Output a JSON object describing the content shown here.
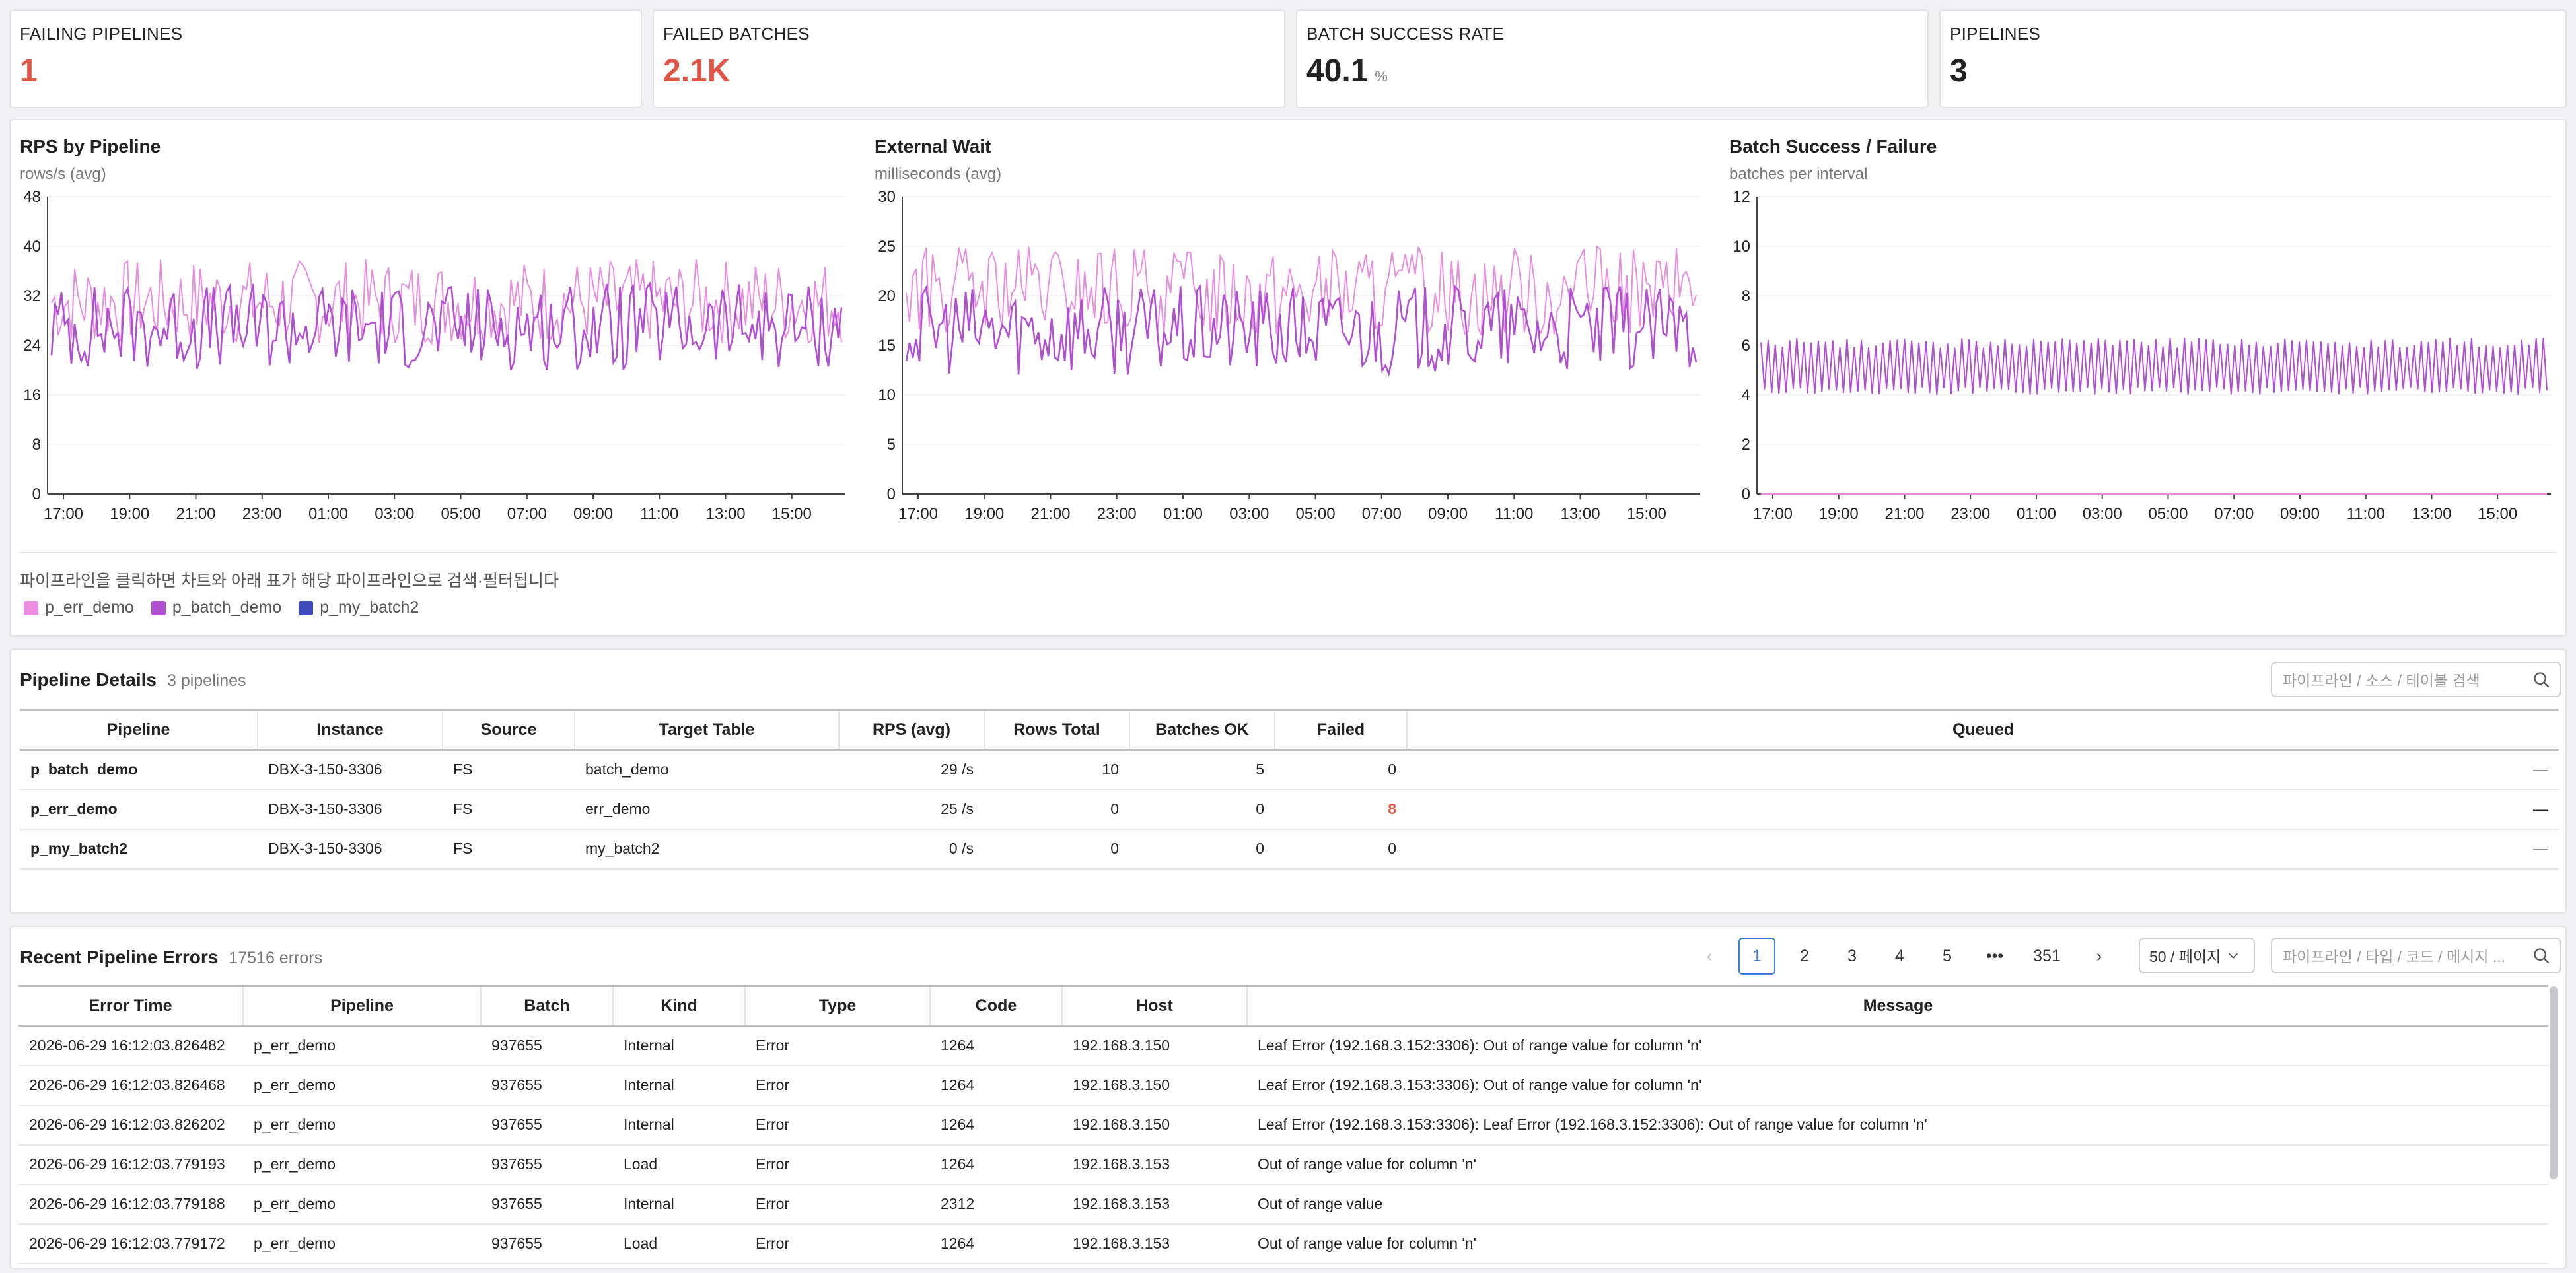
{
  "kpis": [
    {
      "label": "FAILING PIPELINES",
      "value": "1",
      "unit": ""
    },
    {
      "label": "FAILED BATCHES",
      "value": "2.1K",
      "unit": ""
    },
    {
      "label": "BATCH SUCCESS RATE",
      "value": "40.1",
      "unit": "%"
    },
    {
      "label": "PIPELINES",
      "value": "3",
      "unit": ""
    }
  ],
  "colors": {
    "p_err_demo": "#e88de0",
    "p_batch_demo": "#b04ed4",
    "p_my_batch2": "#3f4bbb",
    "danger": "#e05546",
    "accent": "#3b7ddd"
  },
  "chart_data": [
    {
      "type": "line",
      "title": "RPS by Pipeline",
      "subtitle": "rows/s (avg)",
      "x_ticks": [
        "17:00",
        "19:00",
        "21:00",
        "23:00",
        "01:00",
        "03:00",
        "05:00",
        "07:00",
        "09:00",
        "11:00",
        "13:00",
        "15:00"
      ],
      "y_ticks": [
        0,
        8,
        16,
        24,
        32,
        40,
        48
      ],
      "ylim": [
        0,
        48
      ],
      "series": [
        {
          "name": "p_err_demo",
          "range": [
            24,
            38
          ]
        },
        {
          "name": "p_batch_demo",
          "range": [
            20,
            34
          ]
        }
      ]
    },
    {
      "type": "line",
      "title": "External Wait",
      "subtitle": "milliseconds (avg)",
      "x_ticks": [
        "17:00",
        "19:00",
        "21:00",
        "23:00",
        "01:00",
        "03:00",
        "05:00",
        "07:00",
        "09:00",
        "11:00",
        "13:00",
        "15:00"
      ],
      "y_ticks": [
        0,
        5,
        10,
        15,
        20,
        25,
        30
      ],
      "ylim": [
        0,
        30
      ],
      "series": [
        {
          "name": "p_err_demo",
          "range": [
            16,
            25
          ]
        },
        {
          "name": "p_batch_demo",
          "range": [
            12,
            21
          ]
        }
      ]
    },
    {
      "type": "line",
      "title": "Batch Success / Failure",
      "subtitle": "batches per interval",
      "x_ticks": [
        "17:00",
        "19:00",
        "21:00",
        "23:00",
        "01:00",
        "03:00",
        "05:00",
        "07:00",
        "09:00",
        "11:00",
        "13:00",
        "15:00"
      ],
      "y_ticks": [
        0,
        2,
        4,
        6,
        8,
        10,
        12
      ],
      "ylim": [
        0,
        12
      ],
      "series": [
        {
          "name": "p_batch_demo",
          "range": [
            4,
            6.3
          ]
        },
        {
          "name": "p_err_demo",
          "range": [
            0,
            0
          ]
        }
      ]
    }
  ],
  "charts_hint": "파이프라인을 클릭하면 차트와 아래 표가 해당 파이프라인으로 검색·필터됩니다",
  "legend": [
    "p_err_demo",
    "p_batch_demo",
    "p_my_batch2"
  ],
  "details": {
    "title": "Pipeline Details",
    "count": "3 pipelines",
    "search_placeholder": "파이프라인 / 소스 / 테이블 검색",
    "columns": [
      "Pipeline",
      "Instance",
      "Source",
      "Target Table",
      "RPS (avg)",
      "Rows Total",
      "Batches OK",
      "Failed",
      "Queued"
    ],
    "rows": [
      {
        "pipeline": "p_batch_demo",
        "instance": "DBX-3-150-3306",
        "source": "FS",
        "target": "batch_demo",
        "rps": "29 /s",
        "rows_total": "10",
        "batches_ok": "5",
        "failed": "0",
        "queued": "—"
      },
      {
        "pipeline": "p_err_demo",
        "instance": "DBX-3-150-3306",
        "source": "FS",
        "target": "err_demo",
        "rps": "25 /s",
        "rows_total": "0",
        "batches_ok": "0",
        "failed": "8",
        "queued": "—"
      },
      {
        "pipeline": "p_my_batch2",
        "instance": "DBX-3-150-3306",
        "source": "FS",
        "target": "my_batch2",
        "rps": "0 /s",
        "rows_total": "0",
        "batches_ok": "0",
        "failed": "0",
        "queued": "—"
      }
    ]
  },
  "errors": {
    "title": "Recent Pipeline Errors",
    "count": "17516 errors",
    "pages": [
      "1",
      "2",
      "3",
      "4",
      "5",
      "•••",
      "351"
    ],
    "page_size": "50 / 페이지",
    "search_placeholder": "파이프라인 / 타입 / 코드 / 메시지 ...",
    "columns": [
      "Error Time",
      "Pipeline",
      "Batch",
      "Kind",
      "Type",
      "Code",
      "Host",
      "Message"
    ],
    "rows": [
      {
        "time": "2026-06-29 16:12:03.826482",
        "pipeline": "p_err_demo",
        "batch": "937655",
        "kind": "Internal",
        "type": "Error",
        "code": "1264",
        "host": "192.168.3.150",
        "message": "Leaf Error (192.168.3.152:3306): Out of range value for column 'n'"
      },
      {
        "time": "2026-06-29 16:12:03.826468",
        "pipeline": "p_err_demo",
        "batch": "937655",
        "kind": "Internal",
        "type": "Error",
        "code": "1264",
        "host": "192.168.3.150",
        "message": "Leaf Error (192.168.3.153:3306): Out of range value for column 'n'"
      },
      {
        "time": "2026-06-29 16:12:03.826202",
        "pipeline": "p_err_demo",
        "batch": "937655",
        "kind": "Internal",
        "type": "Error",
        "code": "1264",
        "host": "192.168.3.150",
        "message": "Leaf Error (192.168.3.153:3306): Leaf Error (192.168.3.152:3306): Out of range value for column 'n'"
      },
      {
        "time": "2026-06-29 16:12:03.779193",
        "pipeline": "p_err_demo",
        "batch": "937655",
        "kind": "Load",
        "type": "Error",
        "code": "1264",
        "host": "192.168.3.153",
        "message": "Out of range value for column 'n'"
      },
      {
        "time": "2026-06-29 16:12:03.779188",
        "pipeline": "p_err_demo",
        "batch": "937655",
        "kind": "Internal",
        "type": "Error",
        "code": "2312",
        "host": "192.168.3.153",
        "message": "Out of range value"
      },
      {
        "time": "2026-06-29 16:12:03.779172",
        "pipeline": "p_err_demo",
        "batch": "937655",
        "kind": "Load",
        "type": "Error",
        "code": "1264",
        "host": "192.168.3.153",
        "message": "Out of range value for column 'n'"
      }
    ]
  }
}
